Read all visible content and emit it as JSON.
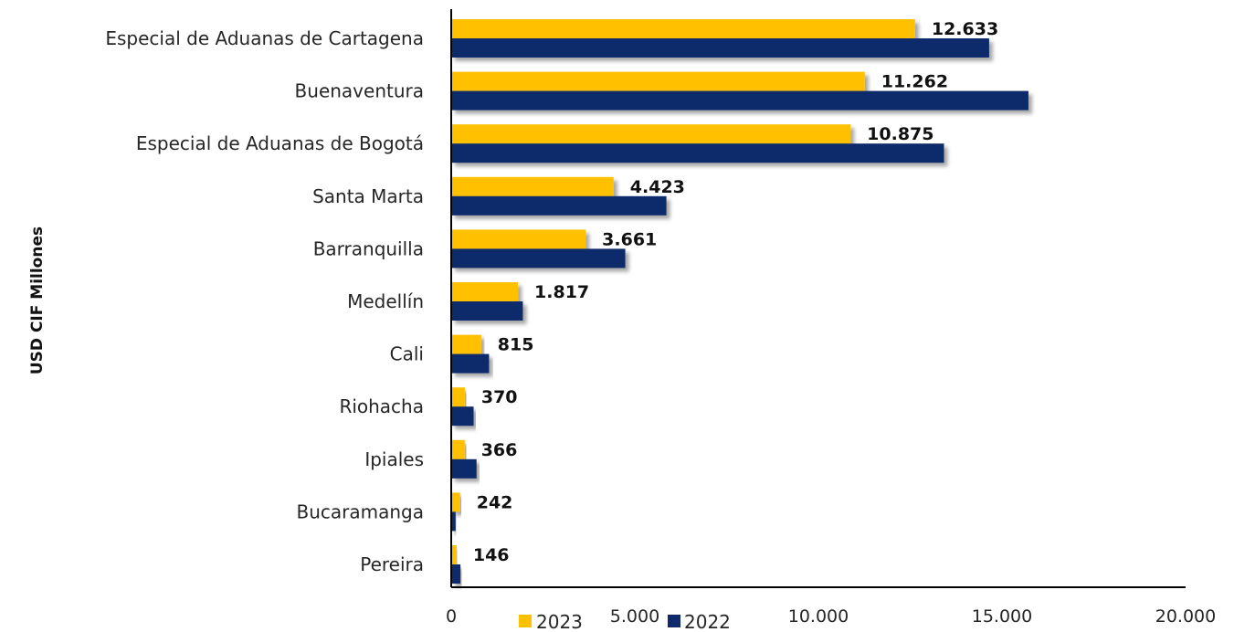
{
  "chart_data": {
    "type": "bar",
    "orientation": "horizontal",
    "ylabel": "USD CIF Millones",
    "xlim": [
      0,
      20000
    ],
    "x_ticks": [
      "0",
      "5.000",
      "10.000",
      "15.000",
      "20.000"
    ],
    "x_tick_values": [
      0,
      5000,
      10000,
      15000,
      20000
    ],
    "categories": [
      "Especial de Aduanas de Cartagena",
      "Buenaventura",
      "Especial de Aduanas de Bogotá",
      "Santa Marta",
      "Barranquilla",
      "Medellín",
      "Cali",
      "Riohacha",
      "Ipiales",
      "Bucaramanga",
      "Pereira"
    ],
    "series": [
      {
        "name": "2023",
        "color": "#FFC000",
        "values": [
          12633,
          11262,
          10875,
          4423,
          3661,
          1817,
          815,
          370,
          366,
          242,
          146
        ],
        "labels": [
          "12.633",
          "11.262",
          "10.875",
          "4.423",
          "3.661",
          "1.817",
          "815",
          "370",
          "366",
          "242",
          "146"
        ]
      },
      {
        "name": "2022",
        "color": "#0F2A6A",
        "values": [
          14650,
          15720,
          13420,
          5860,
          4740,
          1950,
          1030,
          610,
          690,
          120,
          250
        ]
      }
    ],
    "grid": false,
    "legend_position": "bottom"
  }
}
